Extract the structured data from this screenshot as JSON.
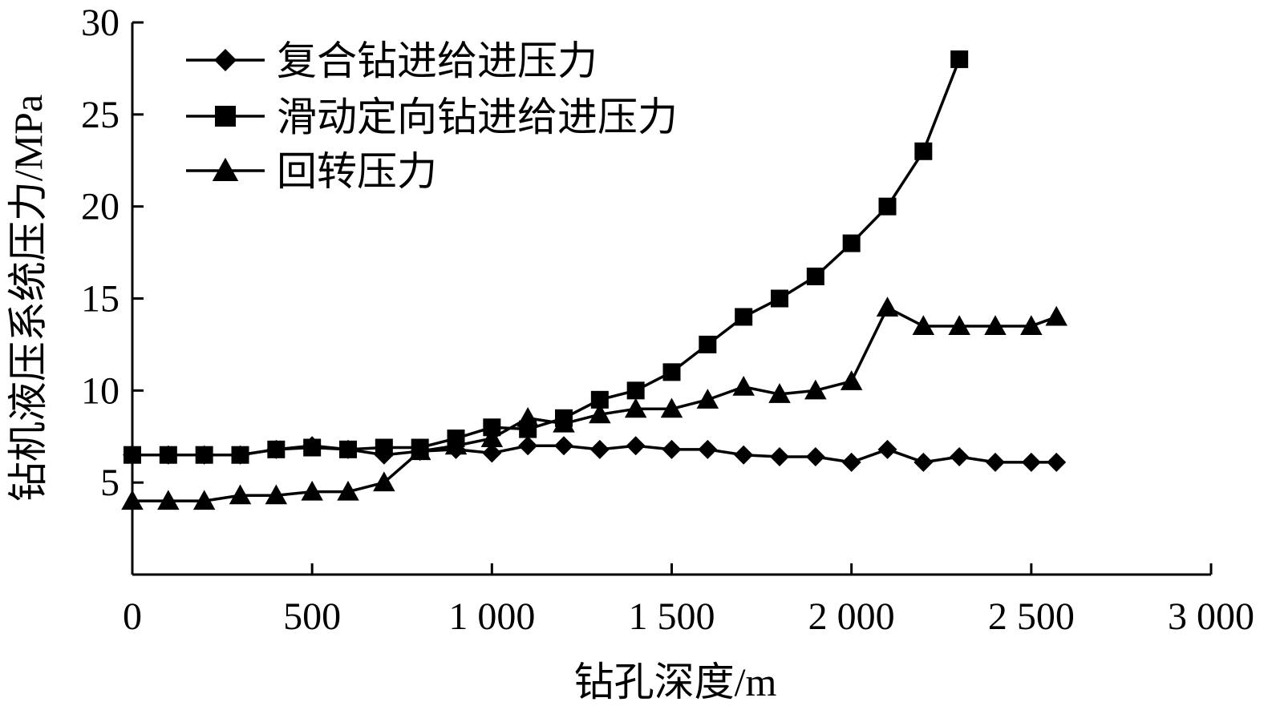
{
  "chart_data": {
    "type": "line",
    "title": "",
    "xlabel": "钻孔深度/m",
    "ylabel": "钻机液压系统压力/MPa",
    "xlim": [
      0,
      3000
    ],
    "ylim": [
      0,
      30
    ],
    "xticks": [
      0,
      500,
      1000,
      1500,
      2000,
      2500,
      3000
    ],
    "xtick_labels": [
      "0",
      "500",
      "1 000",
      "1 500",
      "2 000",
      "2 500",
      "3 000"
    ],
    "yticks": [
      5,
      10,
      15,
      20,
      25,
      30
    ],
    "ytick_labels": [
      "5",
      "10",
      "15",
      "20",
      "25",
      "30"
    ],
    "grid": false,
    "legend_position": "top-left",
    "series": [
      {
        "name": "复合钻进给进压力",
        "marker": "diamond",
        "x": [
          0,
          100,
          200,
          300,
          400,
          500,
          600,
          700,
          800,
          900,
          1000,
          1100,
          1200,
          1300,
          1400,
          1500,
          1600,
          1700,
          1800,
          1900,
          2000,
          2100,
          2200,
          2300,
          2400,
          2500,
          2570
        ],
        "y": [
          6.5,
          6.5,
          6.5,
          6.5,
          6.8,
          7.0,
          6.8,
          6.5,
          6.7,
          6.8,
          6.6,
          7.0,
          7.0,
          6.8,
          7.0,
          6.8,
          6.8,
          6.5,
          6.4,
          6.4,
          6.1,
          6.8,
          6.1,
          6.4,
          6.1,
          6.1,
          6.1
        ]
      },
      {
        "name": "滑动定向钻进给进压力",
        "marker": "square",
        "x": [
          0,
          100,
          200,
          300,
          400,
          500,
          600,
          700,
          800,
          900,
          1000,
          1100,
          1200,
          1300,
          1400,
          1500,
          1600,
          1700,
          1800,
          1900,
          2000,
          2100,
          2200,
          2300
        ],
        "y": [
          6.5,
          6.5,
          6.5,
          6.5,
          6.8,
          6.9,
          6.8,
          6.9,
          6.9,
          7.4,
          8.0,
          7.9,
          8.5,
          9.5,
          10.0,
          11.0,
          12.5,
          14.0,
          15.0,
          16.2,
          18.0,
          20.0,
          23.0,
          28.0
        ]
      },
      {
        "name": "回转压力",
        "marker": "triangle",
        "x": [
          0,
          100,
          200,
          300,
          400,
          500,
          600,
          700,
          800,
          900,
          1000,
          1100,
          1200,
          1300,
          1400,
          1500,
          1600,
          1700,
          1800,
          1900,
          2000,
          2100,
          2200,
          2300,
          2400,
          2500,
          2570
        ],
        "y": [
          4.0,
          4.0,
          4.0,
          4.3,
          4.3,
          4.5,
          4.5,
          5.0,
          6.7,
          7.0,
          7.4,
          8.5,
          8.2,
          8.7,
          9.0,
          9.0,
          9.5,
          10.2,
          9.8,
          10.0,
          10.5,
          14.5,
          13.5,
          13.5,
          13.5,
          13.5,
          14.0
        ]
      }
    ]
  }
}
